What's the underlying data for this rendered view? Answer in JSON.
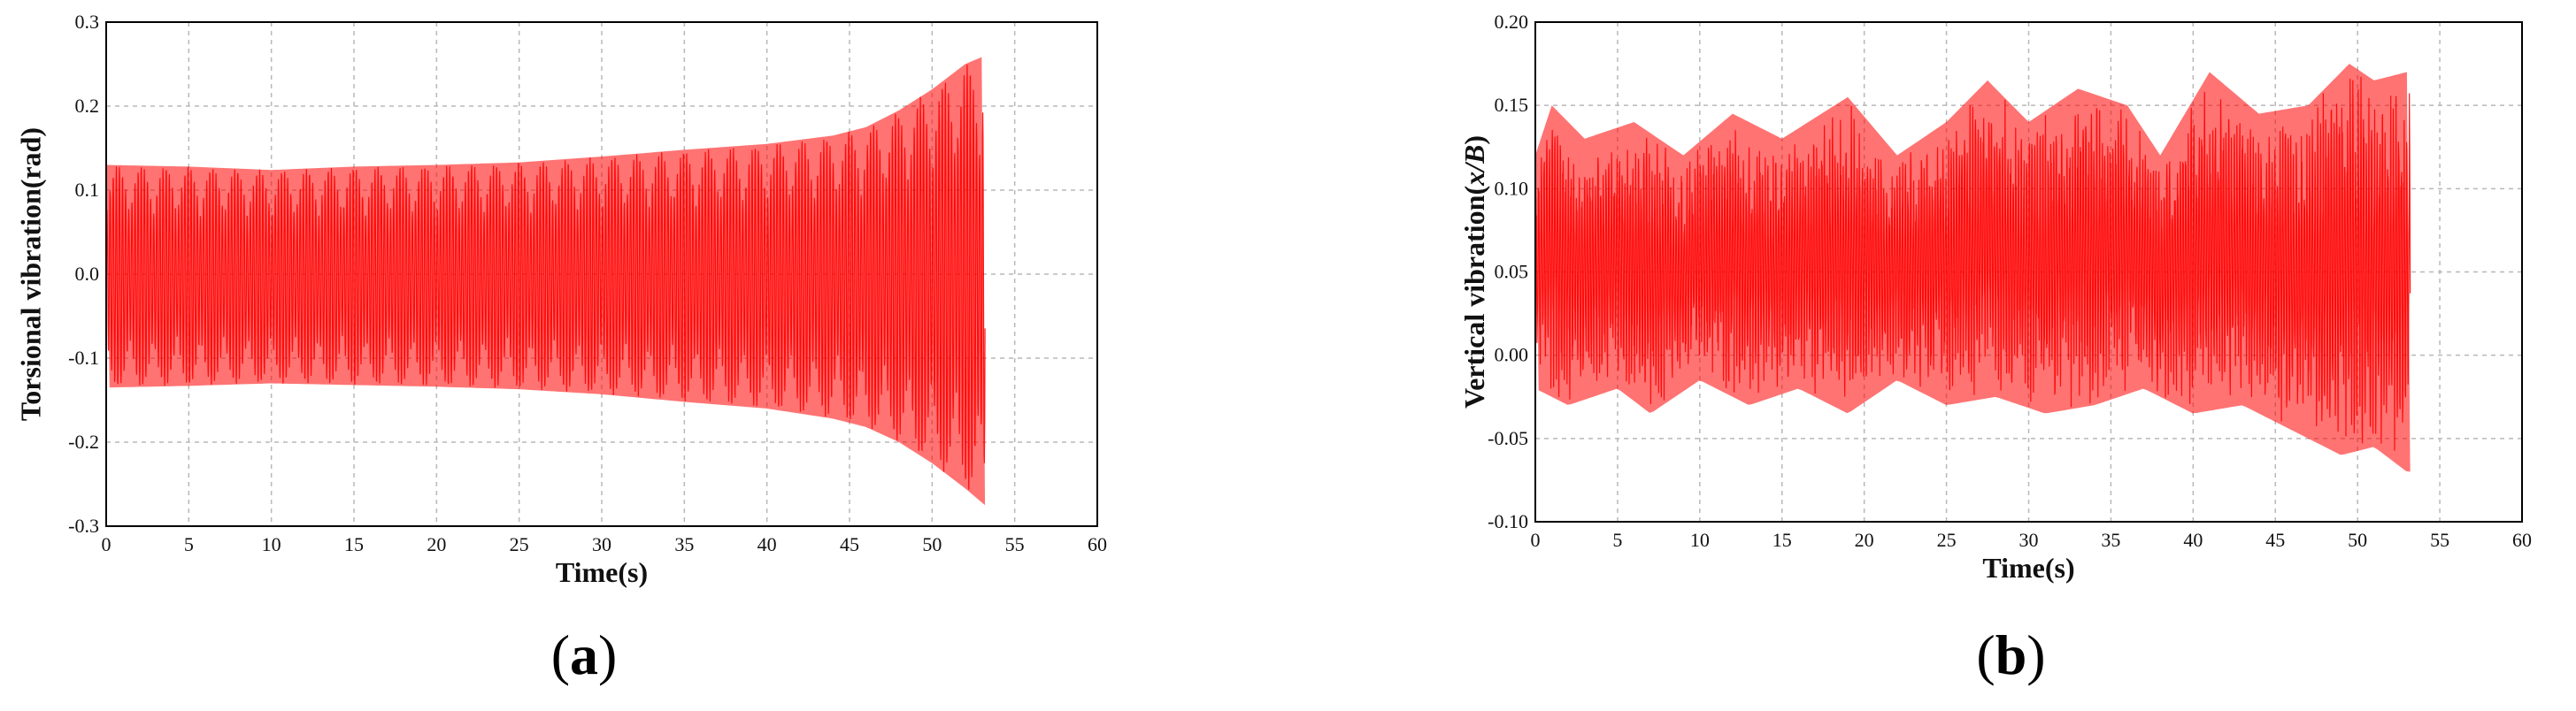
{
  "chart_data": [
    {
      "type": "line",
      "panel_label": "a",
      "title": "",
      "xlabel": "Time(s)",
      "ylabel": "Torsional vibration(rad)",
      "xlim": [
        0,
        60
      ],
      "ylim": [
        -0.3,
        0.3
      ],
      "xticks": [
        "0",
        "5",
        "10",
        "15",
        "20",
        "25",
        "30",
        "35",
        "40",
        "45",
        "50",
        "55",
        "60"
      ],
      "yticks": [
        "0.3",
        "0.2",
        "0.1",
        "0.0",
        "-0.1",
        "-0.2",
        "-0.3"
      ],
      "grid": true,
      "series": [
        {
          "color": "#ff0000",
          "end_time": 53.2,
          "envelope_upper": [
            [
              0,
              0.13
            ],
            [
              5,
              0.128
            ],
            [
              10,
              0.124
            ],
            [
              15,
              0.128
            ],
            [
              20,
              0.13
            ],
            [
              25,
              0.133
            ],
            [
              30,
              0.14
            ],
            [
              35,
              0.148
            ],
            [
              40,
              0.155
            ],
            [
              44,
              0.165
            ],
            [
              46,
              0.175
            ],
            [
              48,
              0.195
            ],
            [
              50,
              0.22
            ],
            [
              52,
              0.25
            ],
            [
              53.2,
              0.26
            ]
          ],
          "envelope_lower": [
            [
              0,
              -0.135
            ],
            [
              5,
              -0.133
            ],
            [
              10,
              -0.13
            ],
            [
              15,
              -0.132
            ],
            [
              20,
              -0.134
            ],
            [
              25,
              -0.137
            ],
            [
              30,
              -0.143
            ],
            [
              35,
              -0.152
            ],
            [
              40,
              -0.16
            ],
            [
              44,
              -0.172
            ],
            [
              46,
              -0.182
            ],
            [
              48,
              -0.2
            ],
            [
              50,
              -0.225
            ],
            [
              52,
              -0.255
            ],
            [
              53.2,
              -0.275
            ]
          ],
          "mean": 0
        }
      ]
    },
    {
      "type": "line",
      "panel_label": "b",
      "title": "",
      "xlabel": "Time(s)",
      "ylabel_prefix": "Vertical vibration(",
      "ylabel_italic": "x/B",
      "ylabel_suffix": ")",
      "xlim": [
        0,
        60
      ],
      "ylim": [
        -0.1,
        0.2
      ],
      "xticks": [
        "0",
        "5",
        "10",
        "15",
        "20",
        "25",
        "30",
        "35",
        "40",
        "45",
        "50",
        "55",
        "60"
      ],
      "yticks": [
        "0.20",
        "0.15",
        "0.10",
        "0.05",
        "0.00",
        "-0.05",
        "-0.10"
      ],
      "grid": true,
      "series": [
        {
          "color": "#ff0000",
          "end_time": 53.2,
          "mean": 0.055,
          "envelope_upper": [
            [
              0,
              0.12
            ],
            [
              1,
              0.15
            ],
            [
              3,
              0.13
            ],
            [
              6,
              0.14
            ],
            [
              9,
              0.12
            ],
            [
              12,
              0.145
            ],
            [
              15,
              0.13
            ],
            [
              19,
              0.155
            ],
            [
              22,
              0.12
            ],
            [
              25,
              0.14
            ],
            [
              27.5,
              0.165
            ],
            [
              30,
              0.14
            ],
            [
              33,
              0.16
            ],
            [
              36,
              0.15
            ],
            [
              38,
              0.12
            ],
            [
              41,
              0.17
            ],
            [
              44,
              0.145
            ],
            [
              47,
              0.15
            ],
            [
              49.5,
              0.175
            ],
            [
              51,
              0.165
            ],
            [
              53,
              0.17
            ]
          ],
          "envelope_lower": [
            [
              0,
              -0.02
            ],
            [
              2,
              -0.03
            ],
            [
              5,
              -0.02
            ],
            [
              7,
              -0.035
            ],
            [
              10,
              -0.015
            ],
            [
              13,
              -0.03
            ],
            [
              16,
              -0.02
            ],
            [
              19,
              -0.035
            ],
            [
              22,
              -0.015
            ],
            [
              25,
              -0.03
            ],
            [
              28,
              -0.025
            ],
            [
              31,
              -0.035
            ],
            [
              34,
              -0.03
            ],
            [
              37,
              -0.02
            ],
            [
              40,
              -0.035
            ],
            [
              43,
              -0.03
            ],
            [
              46,
              -0.045
            ],
            [
              49,
              -0.06
            ],
            [
              51,
              -0.055
            ],
            [
              53,
              -0.07
            ]
          ]
        }
      ]
    }
  ]
}
